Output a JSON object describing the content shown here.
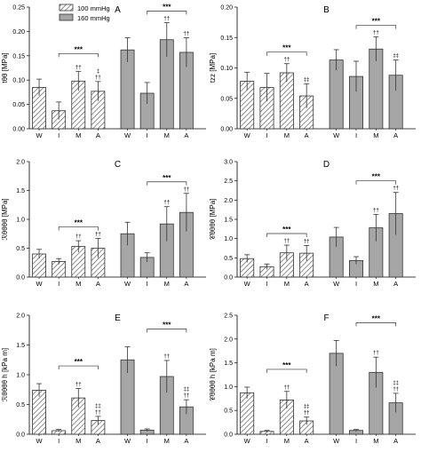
{
  "legend": {
    "series": [
      {
        "name": "100 mmHg",
        "pattern": "hatched"
      },
      {
        "name": "160 mmHg",
        "pattern": "solid"
      }
    ]
  },
  "colors": {
    "solid_fill": "#a6a6a6",
    "hatch": "#555555",
    "stroke": "#333333"
  },
  "chart_data": [
    {
      "type": "bar",
      "panel": "A",
      "ylabel": "tθθ [MPa]",
      "categories": [
        "W",
        "I",
        "M",
        "A"
      ],
      "ylim": [
        0,
        0.25
      ],
      "yticks": [
        "0.00",
        "0.05",
        "0.10",
        "0.15",
        "0.20",
        "0.25"
      ],
      "series": [
        {
          "name": "100 mmHg",
          "values": [
            0.085,
            0.037,
            0.098,
            0.077
          ],
          "err": [
            0.017,
            0.018,
            0.02,
            0.02
          ],
          "marks": [
            "",
            "",
            "††",
            "‡\n††"
          ]
        },
        {
          "name": "160 mmHg",
          "values": [
            0.162,
            0.073,
            0.183,
            0.157
          ],
          "err": [
            0.025,
            0.022,
            0.035,
            0.03
          ],
          "marks": [
            "",
            "",
            "††",
            "††"
          ]
        }
      ],
      "brackets": [
        {
          "series": 0,
          "label": "***"
        },
        {
          "series": 1,
          "label": "***"
        }
      ]
    },
    {
      "type": "bar",
      "panel": "B",
      "ylabel": "tzz [MPa]",
      "categories": [
        "W",
        "I",
        "M",
        "A"
      ],
      "ylim": [
        0,
        0.2
      ],
      "yticks": [
        "0.00",
        "0.05",
        "0.10",
        "0.15",
        "0.20"
      ],
      "series": [
        {
          "name": "100 mmHg",
          "values": [
            0.078,
            0.068,
            0.092,
            0.054
          ],
          "err": [
            0.015,
            0.023,
            0.015,
            0.02
          ],
          "marks": [
            "",
            "",
            "††",
            "‡‡"
          ]
        },
        {
          "name": "160 mmHg",
          "values": [
            0.113,
            0.086,
            0.131,
            0.088
          ],
          "err": [
            0.017,
            0.025,
            0.02,
            0.025
          ],
          "marks": [
            "",
            "",
            "††",
            "‡‡"
          ]
        }
      ],
      "brackets": [
        {
          "series": 0,
          "label": "***"
        },
        {
          "series": 1,
          "label": "***"
        }
      ]
    },
    {
      "type": "bar",
      "panel": "C",
      "ylabel": "ℛθθθθ [MPa]",
      "categories": [
        "W",
        "I",
        "M",
        "A"
      ],
      "ylim": [
        0,
        2.0
      ],
      "yticks": [
        "0.0",
        "0.5",
        "1.0",
        "1.5",
        "2.0"
      ],
      "series": [
        {
          "name": "100 mmHg",
          "values": [
            0.4,
            0.27,
            0.53,
            0.5
          ],
          "err": [
            0.08,
            0.05,
            0.1,
            0.17
          ],
          "marks": [
            "",
            "",
            "††",
            "††"
          ]
        },
        {
          "name": "160 mmHg",
          "values": [
            0.75,
            0.34,
            0.92,
            1.12
          ],
          "err": [
            0.2,
            0.08,
            0.3,
            0.33
          ],
          "marks": [
            "",
            "",
            "††",
            "††"
          ]
        }
      ],
      "brackets": [
        {
          "series": 0,
          "label": "***"
        },
        {
          "series": 1,
          "label": "***"
        }
      ]
    },
    {
      "type": "bar",
      "panel": "D",
      "ylabel": "𝒞θθθθ [MPa]",
      "categories": [
        "W",
        "I",
        "M",
        "A"
      ],
      "ylim": [
        0,
        3.0
      ],
      "yticks": [
        "0.0",
        "0.5",
        "1.0",
        "1.5",
        "2.0",
        "2.5",
        "3.0"
      ],
      "series": [
        {
          "name": "100 mmHg",
          "values": [
            0.48,
            0.27,
            0.63,
            0.62
          ],
          "err": [
            0.1,
            0.07,
            0.2,
            0.2
          ],
          "marks": [
            "",
            "",
            "††",
            "††"
          ]
        },
        {
          "name": "160 mmHg",
          "values": [
            1.04,
            0.43,
            1.28,
            1.65
          ],
          "err": [
            0.25,
            0.1,
            0.35,
            0.55
          ],
          "marks": [
            "",
            "",
            "††",
            "††"
          ]
        }
      ],
      "brackets": [
        {
          "series": 0,
          "label": "***"
        },
        {
          "series": 1,
          "label": "***"
        }
      ]
    },
    {
      "type": "bar",
      "panel": "E",
      "ylabel": "ℛθθθθ h [kPa m]",
      "categories": [
        "W",
        "I",
        "M",
        "A"
      ],
      "ylim": [
        0,
        2.0
      ],
      "yticks": [
        "0.0",
        "0.5",
        "1.0",
        "1.5",
        "2.0"
      ],
      "series": [
        {
          "name": "100 mmHg",
          "values": [
            0.74,
            0.06,
            0.61,
            0.23
          ],
          "err": [
            0.11,
            0.02,
            0.16,
            0.07
          ],
          "marks": [
            "",
            "",
            "††",
            "‡‡\n††"
          ]
        },
        {
          "name": "160 mmHg",
          "values": [
            1.25,
            0.07,
            0.97,
            0.46
          ],
          "err": [
            0.22,
            0.02,
            0.27,
            0.12
          ],
          "marks": [
            "",
            "",
            "††",
            "‡‡\n††"
          ]
        }
      ],
      "brackets": [
        {
          "series": 0,
          "label": "***"
        },
        {
          "series": 1,
          "label": "***"
        }
      ]
    },
    {
      "type": "bar",
      "panel": "F",
      "ylabel": "𝒞θθθθ h [kPa m]",
      "categories": [
        "W",
        "I",
        "M",
        "A"
      ],
      "ylim": [
        0,
        2.5
      ],
      "yticks": [
        "0.0",
        "0.5",
        "1.0",
        "1.5",
        "2.0",
        "2.5"
      ],
      "series": [
        {
          "name": "100 mmHg",
          "values": [
            0.87,
            0.06,
            0.72,
            0.28
          ],
          "err": [
            0.12,
            0.02,
            0.18,
            0.08
          ],
          "marks": [
            "",
            "",
            "††",
            "‡‡\n††"
          ]
        },
        {
          "name": "160 mmHg",
          "values": [
            1.7,
            0.08,
            1.3,
            0.66
          ],
          "err": [
            0.27,
            0.02,
            0.32,
            0.2
          ],
          "marks": [
            "",
            "",
            "††",
            "‡‡\n††"
          ]
        }
      ],
      "brackets": [
        {
          "series": 0,
          "label": "***"
        },
        {
          "series": 1,
          "label": "***"
        }
      ]
    }
  ]
}
